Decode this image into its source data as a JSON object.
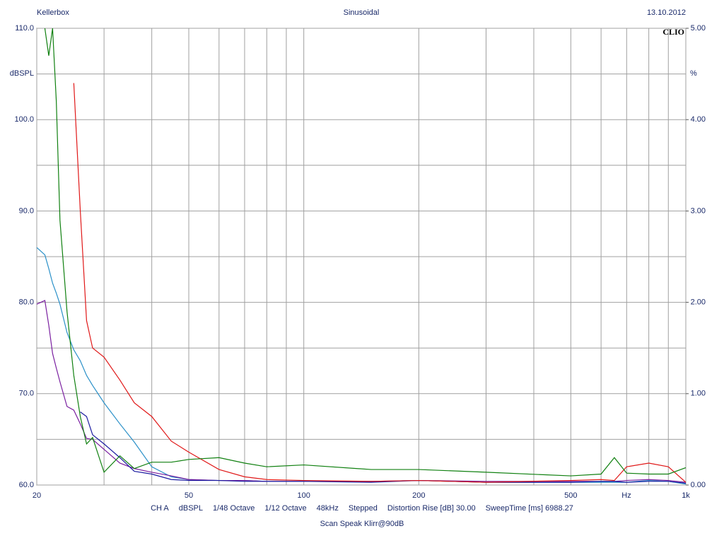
{
  "chart_data": {
    "type": "line",
    "title": "Sinusoidal",
    "header_left": "Kellerbox",
    "header_right": "13.10.2012",
    "brand": "CLIO",
    "ylabel": "dBSPL",
    "y2label": "%",
    "xlabel": "Hz",
    "footer_items": [
      "CH A",
      "dBSPL",
      "1/48 Octave",
      "1/12 Octave",
      "48kHz",
      "Stepped",
      "Distortion Rise [dB] 30.00",
      "SweepTime [ms] 6988.27"
    ],
    "footer_note": "Scan Speak Klirr@90dB",
    "xscale": "log",
    "grid": true,
    "xlim": [
      20,
      1000
    ],
    "xticks": [
      20,
      50,
      100,
      200,
      500,
      {
        "value": 1000,
        "label": "1k"
      }
    ],
    "xminor_ticks": [
      30,
      40,
      60,
      70,
      80,
      90,
      300,
      400,
      600,
      700,
      800,
      900
    ],
    "ylim": [
      60,
      110
    ],
    "yticks": [
      {
        "value": 60,
        "label": "60.0"
      },
      {
        "value": 70,
        "label": "70.0"
      },
      {
        "value": 80,
        "label": "80.0"
      },
      {
        "value": 90,
        "label": "90.0"
      },
      {
        "value": 100,
        "label": "100.0"
      },
      {
        "value": 110,
        "label": "110.0"
      }
    ],
    "yminor_ticks": [
      65,
      75,
      85,
      95,
      105
    ],
    "y2lim": [
      0,
      5
    ],
    "y2ticks": [
      {
        "value": 0,
        "label": "0.00"
      },
      {
        "value": 1,
        "label": "1.00"
      },
      {
        "value": 2,
        "label": "2.00"
      },
      {
        "value": 3,
        "label": "3.00"
      },
      {
        "value": 4,
        "label": "4.00"
      },
      {
        "value": 5,
        "label": "5.00"
      }
    ],
    "x": [
      20,
      21,
      21.5,
      22,
      22.5,
      23,
      24,
      25,
      26,
      27,
      28,
      30,
      33,
      36,
      40,
      45,
      50,
      60,
      70,
      80,
      100,
      150,
      200,
      300,
      500,
      600,
      650,
      700,
      800,
      900,
      1000
    ],
    "series": [
      {
        "color": "#2a90c8",
        "axis": "y2",
        "values": [
          2.6,
          2.52,
          2.37,
          2.21,
          2.1,
          1.98,
          1.67,
          1.48,
          1.36,
          1.2,
          1.09,
          0.9,
          0.67,
          0.47,
          0.2,
          0.09,
          0.06,
          0.05,
          0.05,
          0.04,
          0.04,
          0.04,
          0.05,
          0.03,
          0.03,
          0.03,
          0.03,
          0.03,
          0.05,
          0.04,
          0.01
        ]
      },
      {
        "color": "#7a1fa0",
        "axis": "y2",
        "values": [
          1.98,
          2.02,
          1.75,
          1.44,
          1.28,
          1.13,
          0.86,
          0.82,
          0.67,
          0.51,
          0.5,
          0.39,
          0.24,
          0.18,
          0.14,
          0.1,
          0.06,
          0.05,
          0.05,
          0.04,
          0.04,
          0.04,
          0.05,
          0.04,
          0.04,
          0.04,
          0.04,
          0.05,
          0.06,
          0.05,
          0.03
        ]
      },
      {
        "color": "#1a1aa0",
        "axis": "y2",
        "values": [
          null,
          null,
          null,
          null,
          null,
          null,
          null,
          null,
          0.8,
          0.75,
          0.55,
          0.45,
          0.3,
          0.15,
          0.12,
          0.06,
          0.05,
          0.05,
          0.04,
          0.04,
          0.04,
          0.03,
          0.05,
          0.03,
          0.03,
          0.04,
          0.04,
          0.03,
          0.04,
          0.04,
          0.02
        ]
      },
      {
        "color": "#e01818",
        "axis": "y2",
        "values": [
          null,
          null,
          null,
          null,
          null,
          null,
          null,
          4.4,
          3.0,
          1.8,
          1.5,
          1.4,
          1.15,
          0.9,
          0.75,
          0.48,
          0.36,
          0.17,
          0.09,
          0.06,
          0.05,
          0.04,
          0.05,
          0.03,
          0.05,
          0.06,
          0.05,
          0.2,
          0.24,
          0.2,
          0.03
        ]
      },
      {
        "color": "#108010",
        "axis": "y2",
        "values": [
          null,
          5.0,
          4.7,
          5.0,
          4.2,
          2.9,
          1.9,
          1.2,
          0.75,
          0.45,
          0.52,
          0.14,
          0.32,
          0.18,
          0.25,
          0.25,
          0.28,
          0.3,
          0.24,
          0.2,
          0.22,
          0.17,
          0.17,
          0.14,
          0.1,
          0.12,
          0.3,
          0.13,
          0.12,
          0.12,
          0.19
        ]
      }
    ]
  }
}
